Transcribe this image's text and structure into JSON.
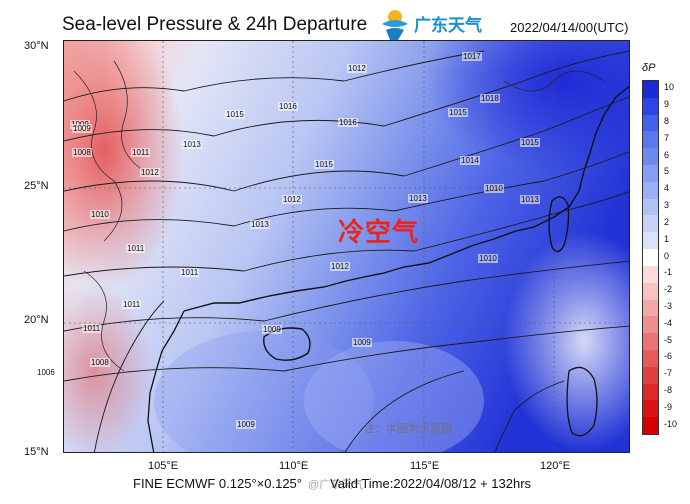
{
  "title": "Sea-level Pressure & 24h Departure",
  "logo_text": "广东天气",
  "datetime": "2022/04/14/00(UTC)",
  "lat_labels": [
    "30°N",
    "25°N",
    "20°N",
    "15°N"
  ],
  "lon_labels": [
    "105°E",
    "110°E",
    "115°E",
    "120°E"
  ],
  "footer_model": "FINE ECMWF 0.125°×0.125°",
  "footer_valid": "Valid Time:2022/04/08/12 + 132hrs",
  "colorbar": {
    "title": "δP",
    "labels": [
      "10",
      "9",
      "8",
      "7",
      "6",
      "5",
      "4",
      "3",
      "2",
      "1",
      "0",
      "-1",
      "-2",
      "-3",
      "-4",
      "-5",
      "-6",
      "-7",
      "-8",
      "-9",
      "-10"
    ],
    "colors": [
      "#1a2bd8",
      "#2d45e6",
      "#4460ec",
      "#5b78ee",
      "#7089f0",
      "#879cf2",
      "#9bb0f4",
      "#b1c2f6",
      "#c6d3f8",
      "#dbe3fb",
      "#ffffff",
      "#fadcdc",
      "#f6c2c2",
      "#f2a8a8",
      "#ee8e8e",
      "#ea7474",
      "#e65a5a",
      "#e24040",
      "#de2828",
      "#da1414",
      "#d40000"
    ]
  },
  "annotation_cold_air": "冷空气",
  "note": "注：本图为示意图",
  "watermark": "@广东天气",
  "isobar_labels": [
    "1017",
    "1012",
    "1016",
    "1015",
    "1016",
    "1018",
    "1015",
    "1013",
    "1009",
    "1011",
    "1012",
    "1014",
    "1013",
    "1015",
    "1012",
    "1013",
    "1011",
    "1010",
    "1011",
    "1011",
    "1012",
    "1013",
    "1010",
    "1008",
    "1009",
    "1010",
    "1011",
    "1009",
    "1008",
    "1006",
    "1009",
    "1009",
    "1015"
  ]
}
